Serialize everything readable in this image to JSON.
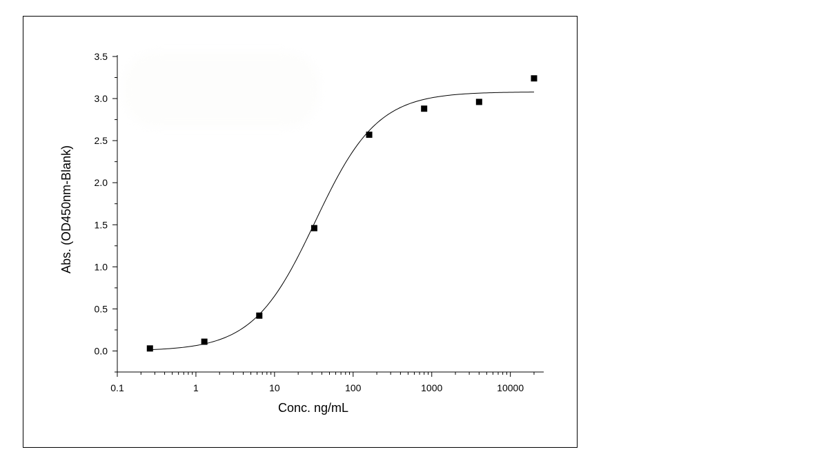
{
  "chart_data": {
    "type": "scatter",
    "xlabel": "Conc. ng/mL",
    "ylabel": "Abs. (OD450nm-Blank)",
    "x_scale": "log",
    "xlim": [
      0.1,
      25000
    ],
    "ylim": [
      -0.25,
      3.5
    ],
    "x_ticks": [
      0.1,
      1,
      10,
      100,
      1000,
      10000
    ],
    "x_tick_labels": [
      "0.1",
      "1",
      "10",
      "100",
      "1000",
      "10000"
    ],
    "y_ticks": [
      0.0,
      0.5,
      1.0,
      1.5,
      2.0,
      2.5,
      3.0,
      3.5
    ],
    "y_tick_labels": [
      "0.0",
      "0.5",
      "1.0",
      "1.5",
      "2.0",
      "2.5",
      "3.0",
      "3.5"
    ],
    "grid": false,
    "marker": "square",
    "marker_color": "#000000",
    "series": [
      {
        "x": [
          0.26,
          1.28,
          6.4,
          32,
          160,
          800,
          4000,
          20000
        ],
        "y": [
          0.03,
          0.11,
          0.42,
          1.46,
          2.57,
          2.88,
          2.96,
          3.24
        ]
      }
    ],
    "fit": {
      "type": "4PL",
      "bottom": 0.0,
      "top": 3.08,
      "ec50": 33,
      "hill": 1.1,
      "x_range": [
        0.26,
        20000
      ]
    }
  }
}
